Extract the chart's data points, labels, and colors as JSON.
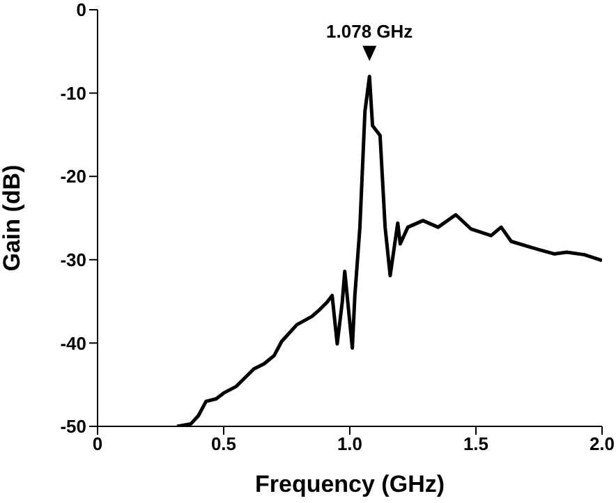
{
  "chart_data": {
    "type": "line",
    "xlabel": "Frequency (GHz)",
    "ylabel": "Gain (dB)",
    "xlim": [
      0,
      2
    ],
    "xticks": [
      0,
      0.5,
      {
        "value": 1,
        "label": "1.0"
      },
      1.5,
      {
        "value": 2,
        "label": "2.0"
      }
    ],
    "ylim": [
      -50,
      0
    ],
    "yticks": [
      -50,
      -40,
      -30,
      -20,
      -10,
      0
    ],
    "grid": false,
    "legend": false,
    "marker": "none",
    "line_style": "solid",
    "annotations": [
      {
        "text": "1.078 GHz",
        "x": 1.078,
        "y": -8
      }
    ],
    "series": [
      {
        "color": "#000000",
        "x": [
          0.315,
          0.37,
          0.4,
          0.43,
          0.47,
          0.5,
          0.55,
          0.58,
          0.62,
          0.66,
          0.7,
          0.73,
          0.79,
          0.85,
          0.88,
          0.91,
          0.93,
          0.95,
          0.97,
          0.98,
          1.01,
          1.02,
          1.04,
          1.06,
          1.078,
          1.09,
          1.12,
          1.14,
          1.16,
          1.19,
          1.2,
          1.23,
          1.29,
          1.35,
          1.42,
          1.48,
          1.56,
          1.6,
          1.64,
          1.75,
          1.81,
          1.86,
          1.93,
          2.0
        ],
        "values": [
          -50,
          -49.7,
          -48.7,
          -47,
          -46.7,
          -46,
          -45.2,
          -44.3,
          -43.1,
          -42.5,
          -41.5,
          -39.8,
          -37.8,
          -36.8,
          -36,
          -35.1,
          -34.3,
          -40.1,
          -35.1,
          -31.4,
          -40.6,
          -34.3,
          -26.1,
          -12.2,
          -8,
          -13.9,
          -15.1,
          -26.1,
          -31.9,
          -25.6,
          -28.1,
          -26.1,
          -25.3,
          -26.1,
          -24.6,
          -26.3,
          -27.1,
          -26.1,
          -27.8,
          -28.8,
          -29.3,
          -29.1,
          -29.4,
          -30.1
        ]
      }
    ]
  }
}
